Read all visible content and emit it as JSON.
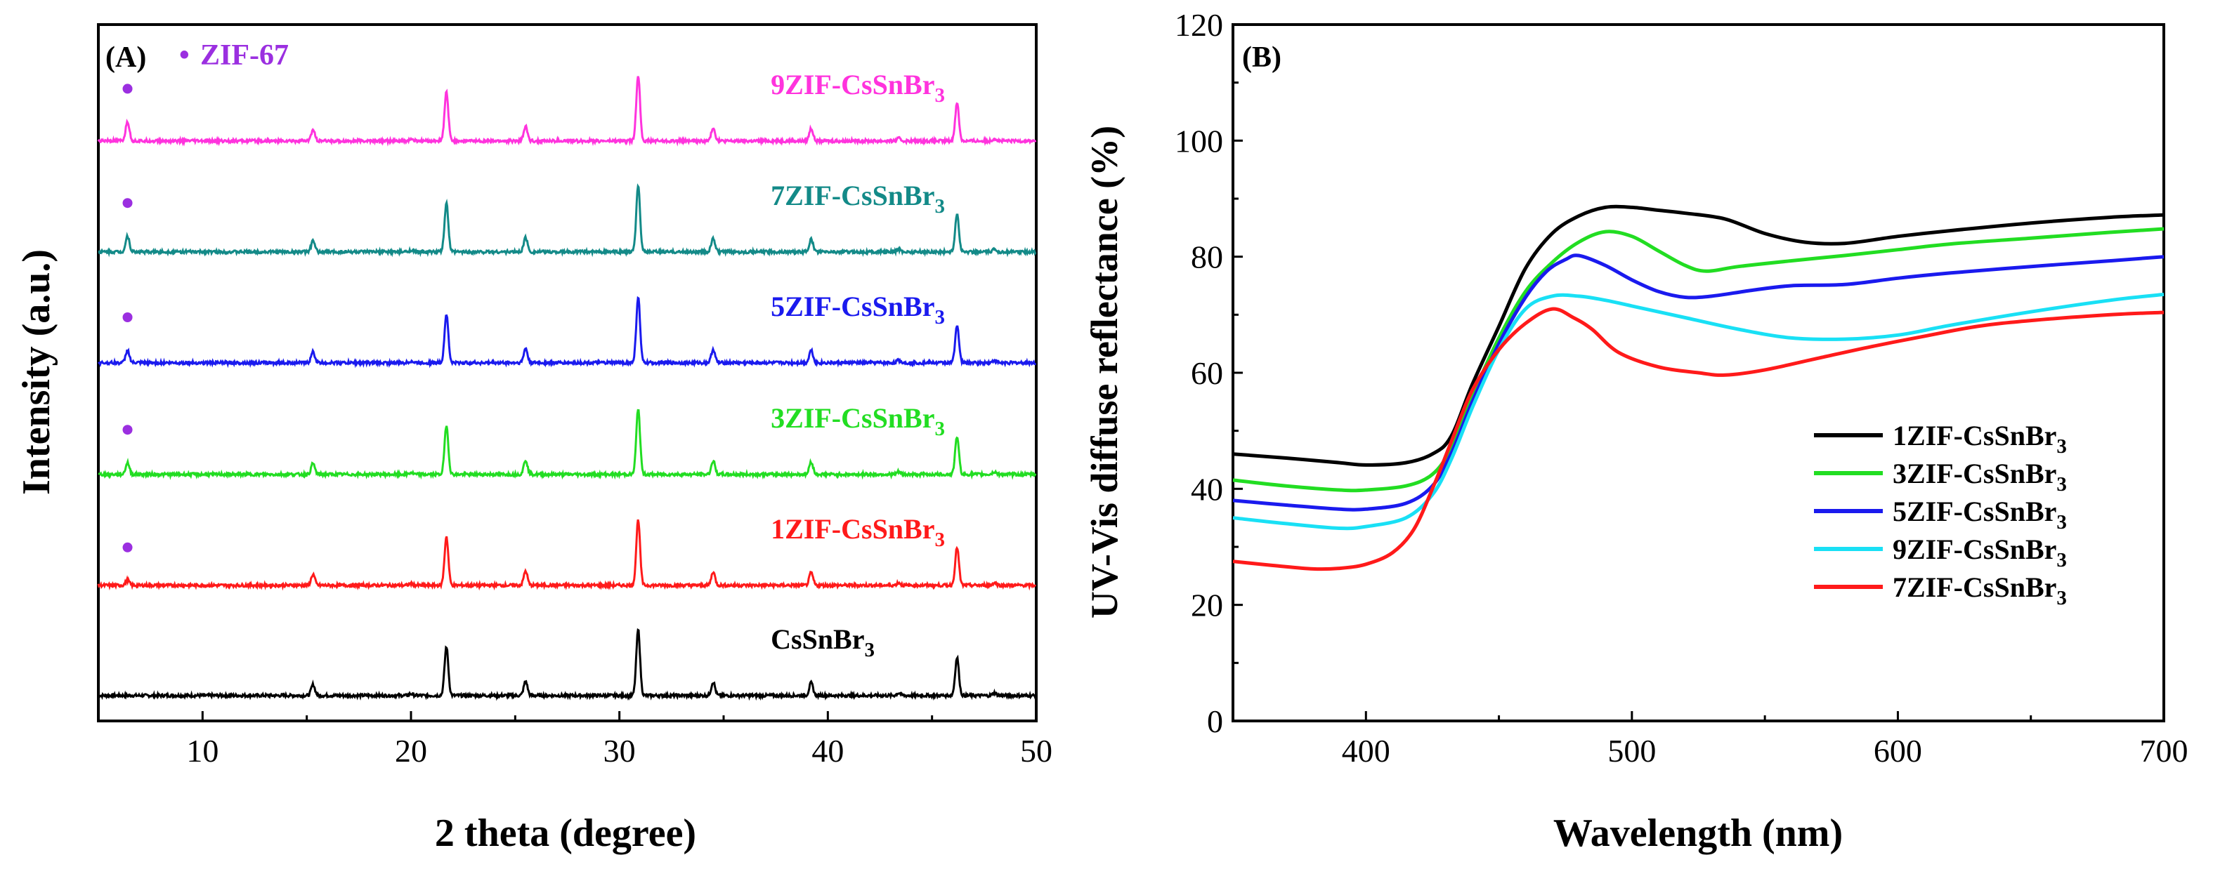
{
  "chart_data": [
    {
      "panel": "(A)",
      "type": "line",
      "title": "",
      "xlabel": "2 theta (degree)",
      "ylabel": "Intensity (a.u.)",
      "xlim": [
        5,
        50
      ],
      "xticks": [
        10,
        20,
        30,
        40,
        50
      ],
      "legend_marker": {
        "symbol": "•",
        "label": "ZIF-67",
        "color": "#9b2fe0"
      },
      "peaks": [
        {
          "pos": 15.3,
          "h": 0.13
        },
        {
          "pos": 20.0,
          "h": 0.02
        },
        {
          "pos": 21.7,
          "h": 0.58
        },
        {
          "pos": 25.5,
          "h": 0.17
        },
        {
          "pos": 30.9,
          "h": 0.78
        },
        {
          "pos": 34.5,
          "h": 0.16
        },
        {
          "pos": 39.2,
          "h": 0.15
        },
        {
          "pos": 43.4,
          "h": 0.03
        },
        {
          "pos": 46.2,
          "h": 0.45
        },
        {
          "pos": 48.0,
          "h": 0.03
        }
      ],
      "series": [
        {
          "name": "CsSnBr",
          "sub": "3",
          "color": "#000000",
          "zif_peak": 0.0,
          "zif_marker": false
        },
        {
          "name": "1ZIF-CsSnBr",
          "sub": "3",
          "color": "#ff1a1a",
          "zif_peak": 0.06,
          "zif_marker": true
        },
        {
          "name": "3ZIF-CsSnBr",
          "sub": "3",
          "color": "#22dd22",
          "zif_peak": 0.14,
          "zif_marker": true
        },
        {
          "name": "5ZIF-CsSnBr",
          "sub": "3",
          "color": "#1a1aee",
          "zif_peak": 0.15,
          "zif_marker": true
        },
        {
          "name": "7ZIF-CsSnBr",
          "sub": "3",
          "color": "#138a88",
          "zif_peak": 0.19,
          "zif_marker": true
        },
        {
          "name": "9ZIF-CsSnBr",
          "sub": "3",
          "color": "#ff33dd",
          "zif_peak": 0.23,
          "zif_marker": true
        }
      ]
    },
    {
      "panel": "(B)",
      "type": "line",
      "title": "",
      "xlabel": "Wavelength (nm)",
      "ylabel": "UV-Vis diffuse reflectance (%)",
      "xlim": [
        350,
        700
      ],
      "ylim": [
        0,
        120
      ],
      "xticks": [
        400,
        500,
        600,
        700
      ],
      "yticks": [
        0,
        20,
        40,
        60,
        80,
        100,
        120
      ],
      "legend_position": "lower-right",
      "series": [
        {
          "name": "1ZIF-CsSnBr",
          "sub": "3",
          "color": "#000000",
          "x": [
            350,
            370,
            390,
            400,
            415,
            425,
            432,
            440,
            450,
            460,
            470,
            480,
            490,
            500,
            510,
            520,
            535,
            550,
            565,
            580,
            600,
            620,
            650,
            680,
            700
          ],
          "y": [
            46,
            45.3,
            44.5,
            44.1,
            44.5,
            46,
            49,
            58,
            68,
            78,
            84,
            87,
            88.5,
            88.5,
            88,
            87.5,
            86.5,
            84,
            82.5,
            82.3,
            83.5,
            84.5,
            85.8,
            86.8,
            87.2
          ]
        },
        {
          "name": "3ZIF-CsSnBr",
          "sub": "3",
          "color": "#22dd22",
          "x": [
            350,
            370,
            390,
            400,
            415,
            425,
            432,
            440,
            450,
            460,
            470,
            480,
            490,
            500,
            510,
            520,
            528,
            540,
            560,
            580,
            600,
            620,
            650,
            680,
            700
          ],
          "y": [
            41.5,
            40.5,
            39.8,
            39.8,
            40.5,
            42.5,
            47,
            56,
            66,
            74,
            79,
            82.5,
            84.3,
            83.5,
            81,
            78.5,
            77.5,
            78.3,
            79.3,
            80.2,
            81.2,
            82.2,
            83.2,
            84.2,
            84.8
          ]
        },
        {
          "name": "5ZIF-CsSnBr",
          "sub": "3",
          "color": "#1a1aee",
          "x": [
            350,
            370,
            390,
            400,
            415,
            425,
            432,
            440,
            450,
            460,
            468,
            475,
            480,
            490,
            500,
            510,
            520,
            530,
            545,
            560,
            580,
            600,
            620,
            650,
            680,
            700
          ],
          "y": [
            38,
            37.2,
            36.5,
            36.5,
            37.5,
            40.5,
            46,
            55,
            65,
            73,
            77.5,
            79.5,
            80.2,
            78.5,
            76,
            74,
            73,
            73.2,
            74.2,
            75,
            75.2,
            76.3,
            77.2,
            78.3,
            79.3,
            80
          ]
        },
        {
          "name": "9ZIF-CsSnBr",
          "sub": "3",
          "color": "#19e0f5",
          "x": [
            350,
            370,
            390,
            400,
            415,
            425,
            432,
            440,
            450,
            460,
            470,
            480,
            490,
            500,
            520,
            540,
            560,
            580,
            600,
            620,
            650,
            680,
            700
          ],
          "y": [
            35,
            34,
            33.2,
            33.5,
            35,
            39,
            45,
            54,
            64,
            71,
            73.2,
            73.2,
            72.5,
            71.5,
            69.5,
            67.5,
            66,
            65.8,
            66.5,
            68.2,
            70.5,
            72.5,
            73.5
          ]
        },
        {
          "name": "7ZIF-CsSnBr",
          "sub": "3",
          "color": "#ff1a1a",
          "x": [
            350,
            365,
            380,
            390,
            400,
            410,
            418,
            425,
            432,
            440,
            450,
            460,
            470,
            478,
            485,
            495,
            510,
            525,
            535,
            550,
            570,
            590,
            610,
            630,
            650,
            680,
            700
          ],
          "y": [
            27.5,
            26.8,
            26.2,
            26.3,
            27,
            29,
            33,
            40,
            48,
            57,
            64,
            68.5,
            71,
            69.5,
            67.5,
            63.5,
            61,
            60,
            59.6,
            60.5,
            62.5,
            64.5,
            66.3,
            68,
            69,
            70,
            70.4
          ]
        }
      ]
    }
  ]
}
